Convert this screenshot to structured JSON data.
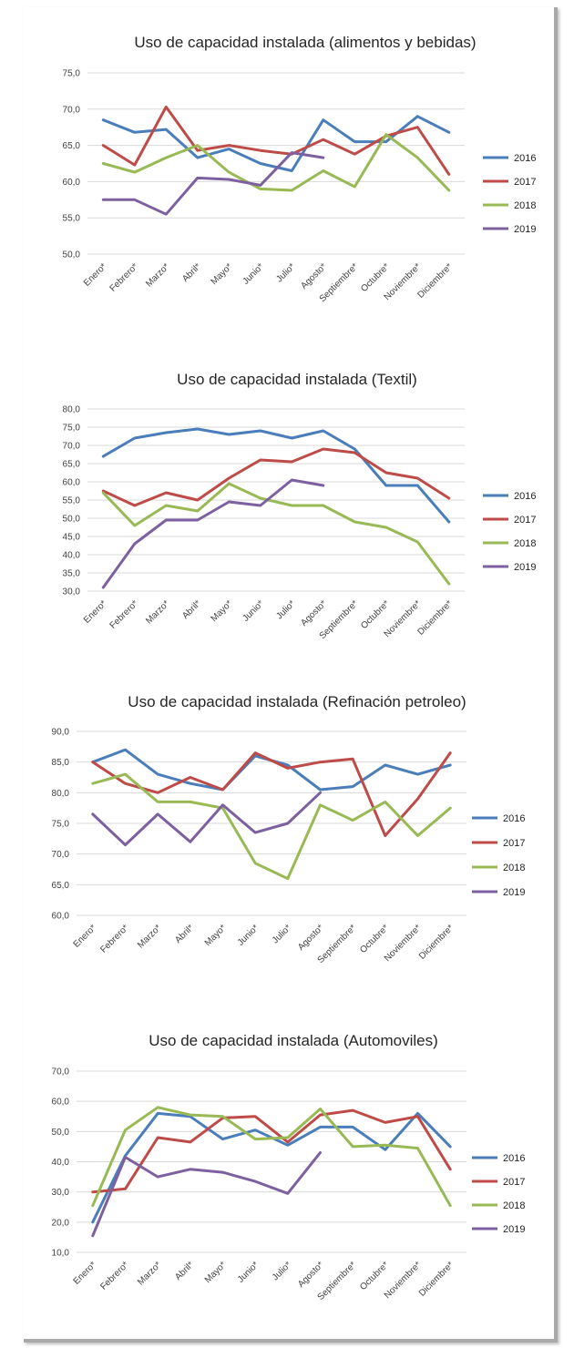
{
  "charts": [
    {
      "type": "line",
      "title": "Uso de capacidad instalada (alimentos y bebidas)",
      "categories": [
        "Enero*",
        "Febrero*",
        "Marzo*",
        "Abril*",
        "Mayo*",
        "Junio*",
        "Julio*",
        "Agosto*",
        "Septiembre*",
        "Octubre*",
        "Noviembre*",
        "Diciembre*"
      ],
      "yticks": [
        "50,0",
        "55,0",
        "60,0",
        "65,0",
        "70,0",
        "75,0"
      ],
      "ylim": [
        50,
        75
      ],
      "legend_position": "right",
      "series": [
        {
          "name": "2016",
          "color": "#4a7ebb",
          "values": [
            68.5,
            66.8,
            67.2,
            63.3,
            64.5,
            62.5,
            61.5,
            68.5,
            65.5,
            65.5,
            69.0,
            66.8
          ]
        },
        {
          "name": "2017",
          "color": "#be4b48",
          "values": [
            65.0,
            62.3,
            70.3,
            64.3,
            65.0,
            64.3,
            63.8,
            65.8,
            63.8,
            66.3,
            67.5,
            61.0
          ]
        },
        {
          "name": "2018",
          "color": "#98b954",
          "values": [
            62.5,
            61.3,
            63.3,
            65.0,
            61.3,
            59.0,
            58.8,
            61.5,
            59.3,
            66.5,
            63.3,
            58.8
          ]
        },
        {
          "name": "2019",
          "color": "#7d60a0",
          "values": [
            57.5,
            57.5,
            55.5,
            60.5,
            60.3,
            59.5,
            64.0,
            63.3
          ]
        }
      ]
    },
    {
      "type": "line",
      "title": "Uso de capacidad instalada (Textil)",
      "categories": [
        "Enero*",
        "Febrero*",
        "Marzo*",
        "Abril*",
        "Mayo*",
        "Junio*",
        "Julio*",
        "Agosto*",
        "Septiembre*",
        "Octubre*",
        "Noviembre*",
        "Diciembre*"
      ],
      "yticks": [
        "30,0",
        "35,0",
        "40,0",
        "45,0",
        "50,0",
        "55,0",
        "60,0",
        "65,0",
        "70,0",
        "75,0",
        "80,0"
      ],
      "ylim": [
        30,
        80
      ],
      "legend_position": "right",
      "series": [
        {
          "name": "2016",
          "color": "#4a7ebb",
          "values": [
            67.0,
            72.0,
            73.5,
            74.5,
            73.0,
            74.0,
            72.0,
            74.0,
            69.0,
            59.0,
            59.0,
            49.0
          ]
        },
        {
          "name": "2017",
          "color": "#be4b48",
          "values": [
            57.5,
            53.5,
            57.0,
            55.0,
            61.0,
            66.0,
            65.5,
            69.0,
            68.0,
            62.5,
            61.0,
            55.5
          ]
        },
        {
          "name": "2018",
          "color": "#98b954",
          "values": [
            57.0,
            48.0,
            53.5,
            52.0,
            59.5,
            55.5,
            53.5,
            53.5,
            49.0,
            47.5,
            43.5,
            32.0
          ]
        },
        {
          "name": "2019",
          "color": "#7d60a0",
          "values": [
            31.0,
            43.0,
            49.5,
            49.5,
            54.5,
            53.5,
            60.5,
            59.0
          ]
        }
      ]
    },
    {
      "type": "line",
      "title": "Uso de capacidad instalada (Refinación petroleo)",
      "categories": [
        "Enero*",
        "Febrero*",
        "Marzo*",
        "Abril*",
        "Mayo*",
        "Junio*",
        "Julio*",
        "Agosto*",
        "Septiembre*",
        "Octubre*",
        "Noviembre*",
        "Diciembre*"
      ],
      "yticks": [
        "60,0",
        "65,0",
        "70,0",
        "75,0",
        "80,0",
        "85,0",
        "90,0"
      ],
      "ylim": [
        60,
        90
      ],
      "legend_position": "right",
      "series": [
        {
          "name": "2016",
          "color": "#4a7ebb",
          "values": [
            85.0,
            87.0,
            83.0,
            81.5,
            80.5,
            86.0,
            84.5,
            80.5,
            81.0,
            84.5,
            83.0,
            84.5
          ]
        },
        {
          "name": "2017",
          "color": "#be4b48",
          "values": [
            85.0,
            81.5,
            80.0,
            82.5,
            80.5,
            86.5,
            84.0,
            85.0,
            85.5,
            73.0,
            79.0,
            86.5
          ]
        },
        {
          "name": "2018",
          "color": "#98b954",
          "values": [
            81.5,
            83.0,
            78.5,
            78.5,
            77.5,
            68.5,
            66.0,
            78.0,
            75.5,
            78.5,
            73.0,
            77.5
          ]
        },
        {
          "name": "2019",
          "color": "#7d60a0",
          "values": [
            76.5,
            71.5,
            76.5,
            72.0,
            78.0,
            73.5,
            75.0,
            80.0
          ]
        }
      ]
    },
    {
      "type": "line",
      "title": "Uso de capacidad instalada (Automoviles)",
      "categories": [
        "Enero*",
        "Febrero*",
        "Marzo*",
        "Abril*",
        "Mayo*",
        "Junio*",
        "Julio*",
        "Agosto*",
        "Septiembre*",
        "Octubre*",
        "Noviembre*",
        "Diciembre*"
      ],
      "yticks": [
        "10,0",
        "20,0",
        "30,0",
        "40,0",
        "50,0",
        "60,0",
        "70,0"
      ],
      "ylim": [
        10,
        70
      ],
      "legend_position": "right",
      "series": [
        {
          "name": "2016",
          "color": "#4a7ebb",
          "values": [
            20.0,
            42.0,
            56.0,
            55.0,
            47.5,
            50.5,
            45.5,
            51.5,
            51.5,
            44.0,
            56.0,
            45.0
          ]
        },
        {
          "name": "2017",
          "color": "#be4b48",
          "values": [
            30.0,
            31.0,
            48.0,
            46.5,
            54.5,
            55.0,
            46.5,
            55.5,
            57.0,
            53.0,
            55.0,
            37.5
          ]
        },
        {
          "name": "2018",
          "color": "#98b954",
          "values": [
            25.5,
            50.5,
            58.0,
            55.5,
            55.0,
            47.5,
            48.0,
            57.5,
            45.0,
            45.5,
            44.5,
            25.5
          ]
        },
        {
          "name": "2019",
          "color": "#7d60a0",
          "values": [
            15.5,
            41.5,
            35.0,
            37.5,
            36.5,
            33.5,
            29.5,
            43.0
          ]
        }
      ]
    }
  ]
}
